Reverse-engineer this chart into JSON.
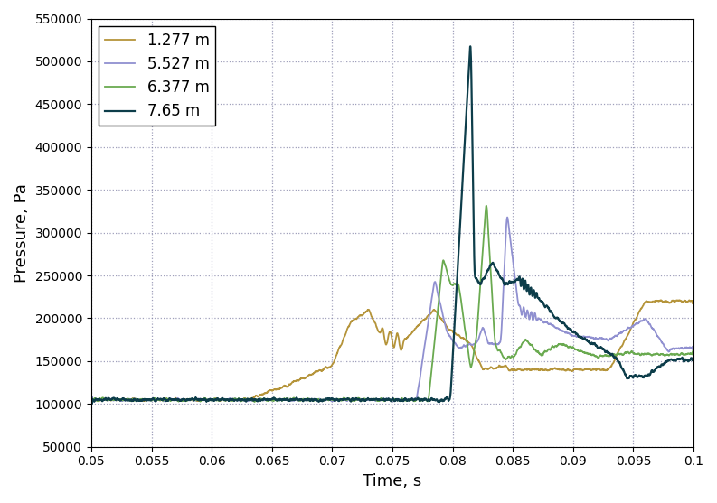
{
  "title": "",
  "xlabel": "Time, s",
  "ylabel": "Pressure, Pa",
  "xlim": [
    0.05,
    0.1
  ],
  "ylim": [
    50000,
    550000
  ],
  "xticks": [
    0.05,
    0.055,
    0.06,
    0.065,
    0.07,
    0.075,
    0.08,
    0.085,
    0.09,
    0.095,
    0.1
  ],
  "yticks": [
    50000,
    100000,
    150000,
    200000,
    250000,
    300000,
    350000,
    400000,
    450000,
    500000,
    550000
  ],
  "legend_labels": [
    "1.277 m",
    "5.527 m",
    "6.377 m",
    "7.65 m"
  ],
  "colors": [
    "#b5943a",
    "#9090d0",
    "#6aaa50",
    "#0d3d4a"
  ],
  "linewidths": [
    1.3,
    1.3,
    1.3,
    1.6
  ],
  "grid_color": "#8888aa",
  "grid_style": ":",
  "background_color": "#ffffff",
  "seed": 42
}
